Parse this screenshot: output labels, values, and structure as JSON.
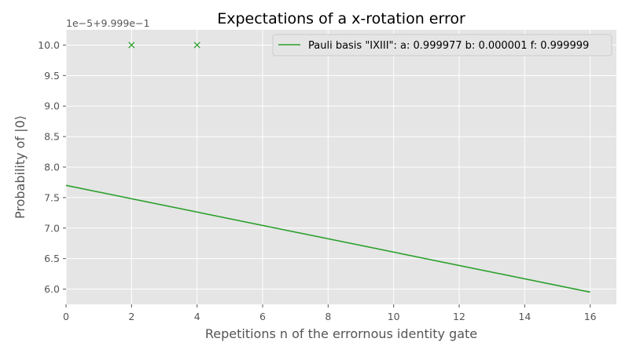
{
  "chart_data": {
    "type": "line",
    "title": "Expectations of a x-rotation error",
    "xlabel": "Repetitions n of the errornous identity gate",
    "ylabel": "Probability of |0⟩",
    "offset_text": "1e−5+9.999e−1",
    "xlim": [
      0,
      16.8
    ],
    "ylim": [
      5.75,
      10.25
    ],
    "x_ticks": [
      0,
      2,
      4,
      6,
      8,
      10,
      12,
      14,
      16
    ],
    "x_tick_labels": [
      "0",
      "2",
      "4",
      "6",
      "8",
      "10",
      "12",
      "14",
      "16"
    ],
    "y_ticks": [
      6.0,
      6.5,
      7.0,
      7.5,
      8.0,
      8.5,
      9.0,
      9.5,
      10.0
    ],
    "y_tick_labels": [
      "6.0",
      "6.5",
      "7.0",
      "7.5",
      "8.0",
      "8.5",
      "9.0",
      "9.5",
      "10.0"
    ],
    "grid": true,
    "legend_position": "top-right",
    "series": [
      {
        "name": "Pauli basis \"IXIII\": a: 0.999977 b: 0.000001 f: 0.999999",
        "type": "line",
        "color": "#2ca02c",
        "x": [
          0,
          16
        ],
        "y": [
          7.7,
          5.95
        ]
      },
      {
        "type": "scatter",
        "marker": "x",
        "color": "#2ca02c",
        "x": [
          2,
          4
        ],
        "y": [
          10.0,
          10.0
        ]
      }
    ]
  }
}
